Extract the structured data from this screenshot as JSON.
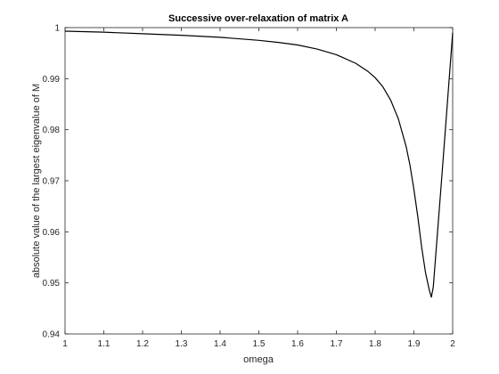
{
  "chart_data": {
    "type": "line",
    "title": "Successive over-relaxation of matrix A",
    "xlabel": "omega",
    "ylabel": "absolute value of the largest eigenvalue of M",
    "xlim": [
      1,
      2
    ],
    "ylim": [
      0.94,
      1.0
    ],
    "xticks": [
      "1",
      "1.1",
      "1.2",
      "1.3",
      "1.4",
      "1.5",
      "1.6",
      "1.7",
      "1.8",
      "1.9",
      "2"
    ],
    "yticks": [
      "0.94",
      "0.95",
      "0.96",
      "0.97",
      "0.98",
      "0.99",
      "1"
    ],
    "grid": false,
    "series": [
      {
        "color": "#000000",
        "x": [
          1.0,
          1.1,
          1.2,
          1.3,
          1.4,
          1.5,
          1.55,
          1.6,
          1.65,
          1.7,
          1.75,
          1.78,
          1.8,
          1.82,
          1.84,
          1.86,
          1.88,
          1.89,
          1.9,
          1.91,
          1.92,
          1.93,
          1.94,
          1.945,
          1.95,
          1.96,
          1.97,
          1.98,
          1.99,
          2.0
        ],
        "y": [
          0.9993,
          0.9991,
          0.9988,
          0.9985,
          0.9981,
          0.9975,
          0.9971,
          0.9966,
          0.9958,
          0.9947,
          0.993,
          0.9915,
          0.9902,
          0.9884,
          0.9858,
          0.9821,
          0.9767,
          0.973,
          0.9683,
          0.963,
          0.957,
          0.952,
          0.9485,
          0.9472,
          0.9492,
          0.959,
          0.9688,
          0.9788,
          0.9889,
          0.999
        ]
      }
    ]
  }
}
